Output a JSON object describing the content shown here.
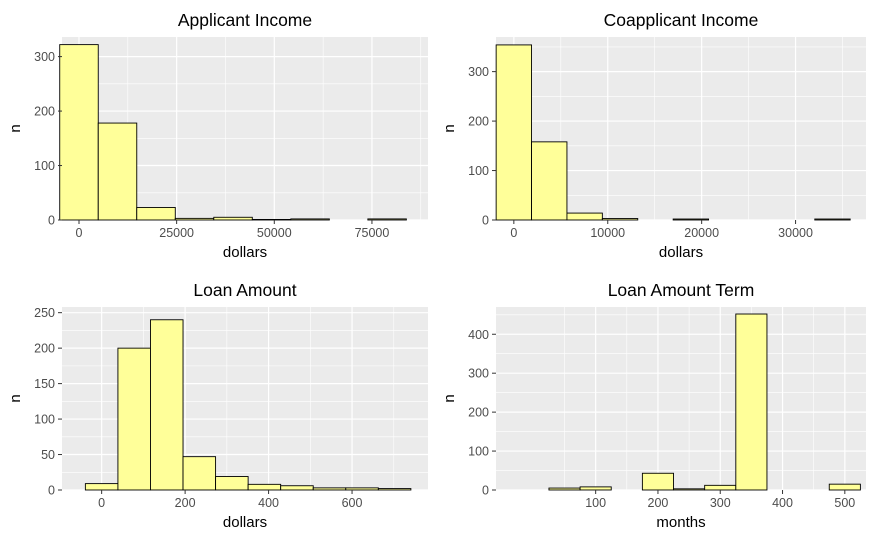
{
  "style": {
    "panel_bg": "#ebebeb",
    "grid_color": "#ffffff",
    "bar_fill": "#ffff99",
    "bar_stroke": "#000000",
    "tick_text": "#4d4d4d",
    "title_text": "#000000"
  },
  "chart_data": [
    {
      "type": "bar",
      "title": "Applicant Income",
      "xlabel": "dollars",
      "ylabel": "n",
      "xlim": [
        -4350,
        89350
      ],
      "ylim": [
        0,
        336
      ],
      "xticks": [
        0,
        25000,
        50000,
        75000
      ],
      "xtick_labels": [
        "0",
        "25000",
        "50000",
        "75000"
      ],
      "yticks": [
        0,
        100,
        200,
        300
      ],
      "ytick_labels": [
        "0",
        "100",
        "200",
        "300"
      ],
      "bin_width": 9860,
      "bin_centers": [
        0,
        9860,
        19720,
        29580,
        39440,
        49300,
        59160,
        69020,
        78880
      ],
      "values": [
        322,
        178,
        23,
        3,
        5,
        1,
        2,
        0,
        2
      ],
      "grid": true
    },
    {
      "type": "bar",
      "title": "Coapplicant Income",
      "xlabel": "dollars",
      "ylabel": "n",
      "xlim": [
        -1900,
        37500
      ],
      "ylim": [
        0,
        370
      ],
      "xticks": [
        0,
        10000,
        20000,
        30000
      ],
      "xtick_labels": [
        "0",
        "10000",
        "20000",
        "30000"
      ],
      "yticks": [
        0,
        100,
        200,
        300
      ],
      "ytick_labels": [
        "0",
        "100",
        "200",
        "300"
      ],
      "bin_width": 3770,
      "bin_centers": [
        0,
        3770,
        7540,
        11310,
        15080,
        18850,
        22620,
        26390,
        30160,
        33930
      ],
      "values": [
        354,
        158,
        14,
        3,
        0,
        2,
        0,
        0,
        0,
        2
      ],
      "grid": true
    },
    {
      "type": "bar",
      "title": "Loan Amount",
      "xlabel": "dollars",
      "ylabel": "n",
      "xlim": [
        -95,
        782
      ],
      "ylim": [
        0,
        258
      ],
      "xticks": [
        0,
        200,
        400,
        600
      ],
      "xtick_labels": [
        "0",
        "200",
        "400",
        "600"
      ],
      "yticks": [
        0,
        50,
        100,
        150,
        200,
        250
      ],
      "ytick_labels": [
        "0",
        "50",
        "100",
        "150",
        "200",
        "250"
      ],
      "bin_width": 78,
      "bin_centers": [
        0,
        78,
        156,
        234,
        312,
        390,
        468,
        546,
        624,
        702
      ],
      "values": [
        9,
        200,
        240,
        47,
        19,
        8,
        6,
        3,
        3,
        2
      ],
      "grid": true
    },
    {
      "type": "bar",
      "title": "Loan Amount Term",
      "xlabel": "months",
      "ylabel": "n",
      "xlim": [
        -60,
        534
      ],
      "ylim": [
        0,
        470
      ],
      "xticks": [
        100,
        200,
        300,
        400,
        500
      ],
      "xtick_labels": [
        "100",
        "200",
        "300",
        "400",
        "500"
      ],
      "yticks": [
        0,
        100,
        200,
        300,
        400
      ],
      "ytick_labels": [
        "0",
        "100",
        "200",
        "300",
        "400"
      ],
      "bin_width": 50,
      "bin_centers": [
        -50,
        0,
        50,
        100,
        150,
        200,
        250,
        300,
        350,
        400,
        450,
        500
      ],
      "values": [
        0,
        0,
        5,
        8,
        0,
        43,
        3,
        12,
        452,
        0,
        0,
        15
      ],
      "grid": true
    }
  ]
}
